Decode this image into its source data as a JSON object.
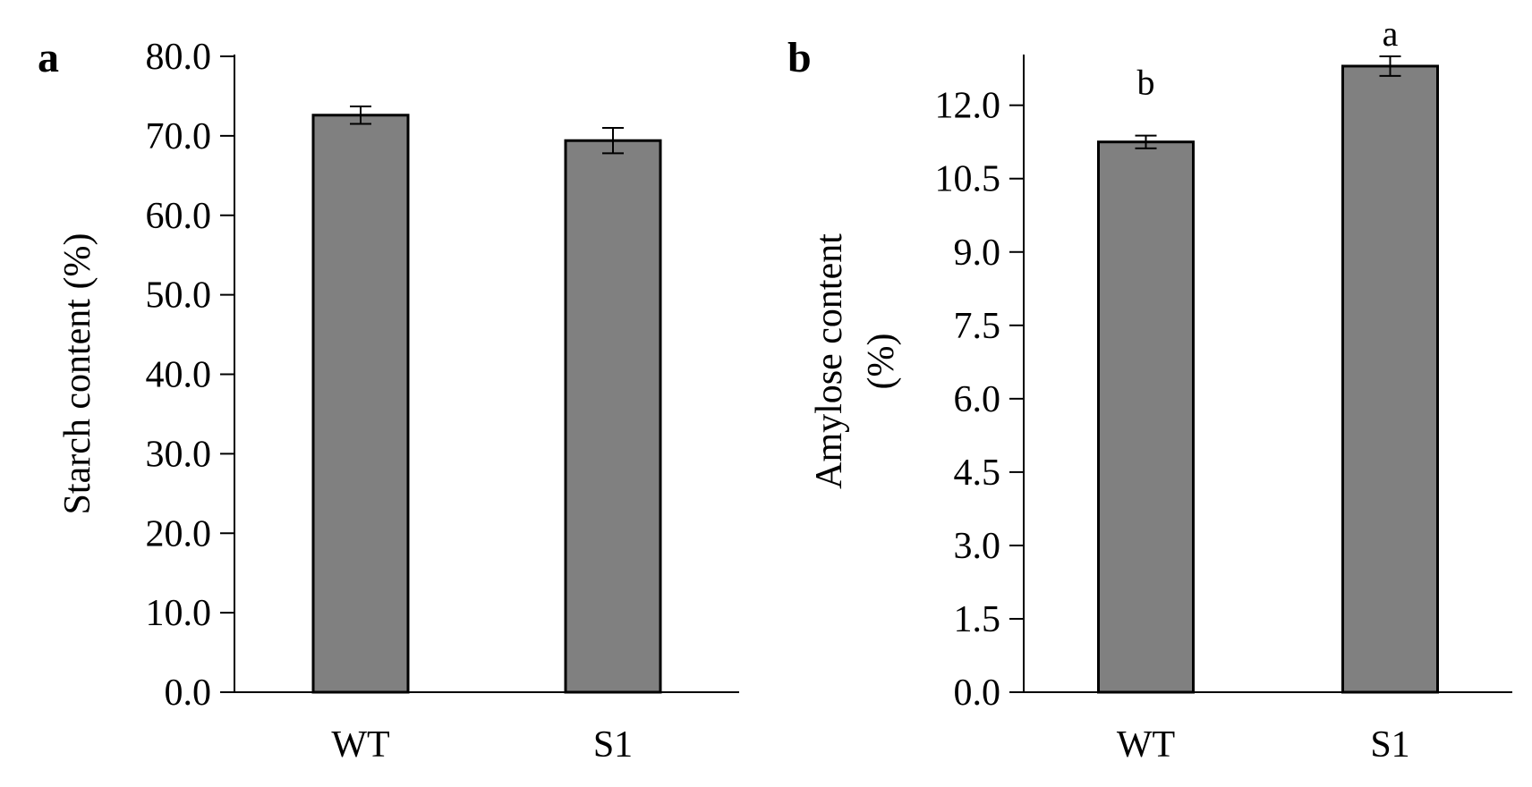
{
  "colors": {
    "bar_fill": "#808080",
    "bar_stroke": "#000000",
    "axis": "#000000",
    "background": "#ffffff"
  },
  "chart_data": [
    {
      "type": "bar",
      "panel_label": "a",
      "title": "",
      "xlabel": "",
      "ylabel": "Starch content (%)",
      "categories": [
        "WT",
        "S1"
      ],
      "values": [
        72.6,
        69.4
      ],
      "errors": [
        1.1,
        1.6
      ],
      "significance": [],
      "ylim": [
        0,
        80
      ],
      "yticks": [
        0,
        10,
        20,
        30,
        40,
        50,
        60,
        70,
        80
      ],
      "ytick_labels": [
        "0.0",
        "10.0",
        "20.0",
        "30.0",
        "40.0",
        "50.0",
        "60.0",
        "70.0",
        "80.0"
      ],
      "grid": false,
      "legend": "none"
    },
    {
      "type": "bar",
      "panel_label": "b",
      "title": "",
      "xlabel": "",
      "ylabel_lines": [
        "Amylose content",
        "(%)"
      ],
      "categories": [
        "WT",
        "S1"
      ],
      "values": [
        11.25,
        12.8
      ],
      "errors": [
        0.13,
        0.2
      ],
      "significance": [
        "b",
        "a"
      ],
      "ylim": [
        0,
        13
      ],
      "yticks": [
        0,
        1.5,
        3,
        4.5,
        6,
        7.5,
        9,
        10.5,
        12
      ],
      "ytick_labels": [
        "0.0",
        "1.5",
        "3.0",
        "4.5",
        "6.0",
        "7.5",
        "9.0",
        "10.5",
        "12.0"
      ],
      "grid": false,
      "legend": "none"
    }
  ]
}
